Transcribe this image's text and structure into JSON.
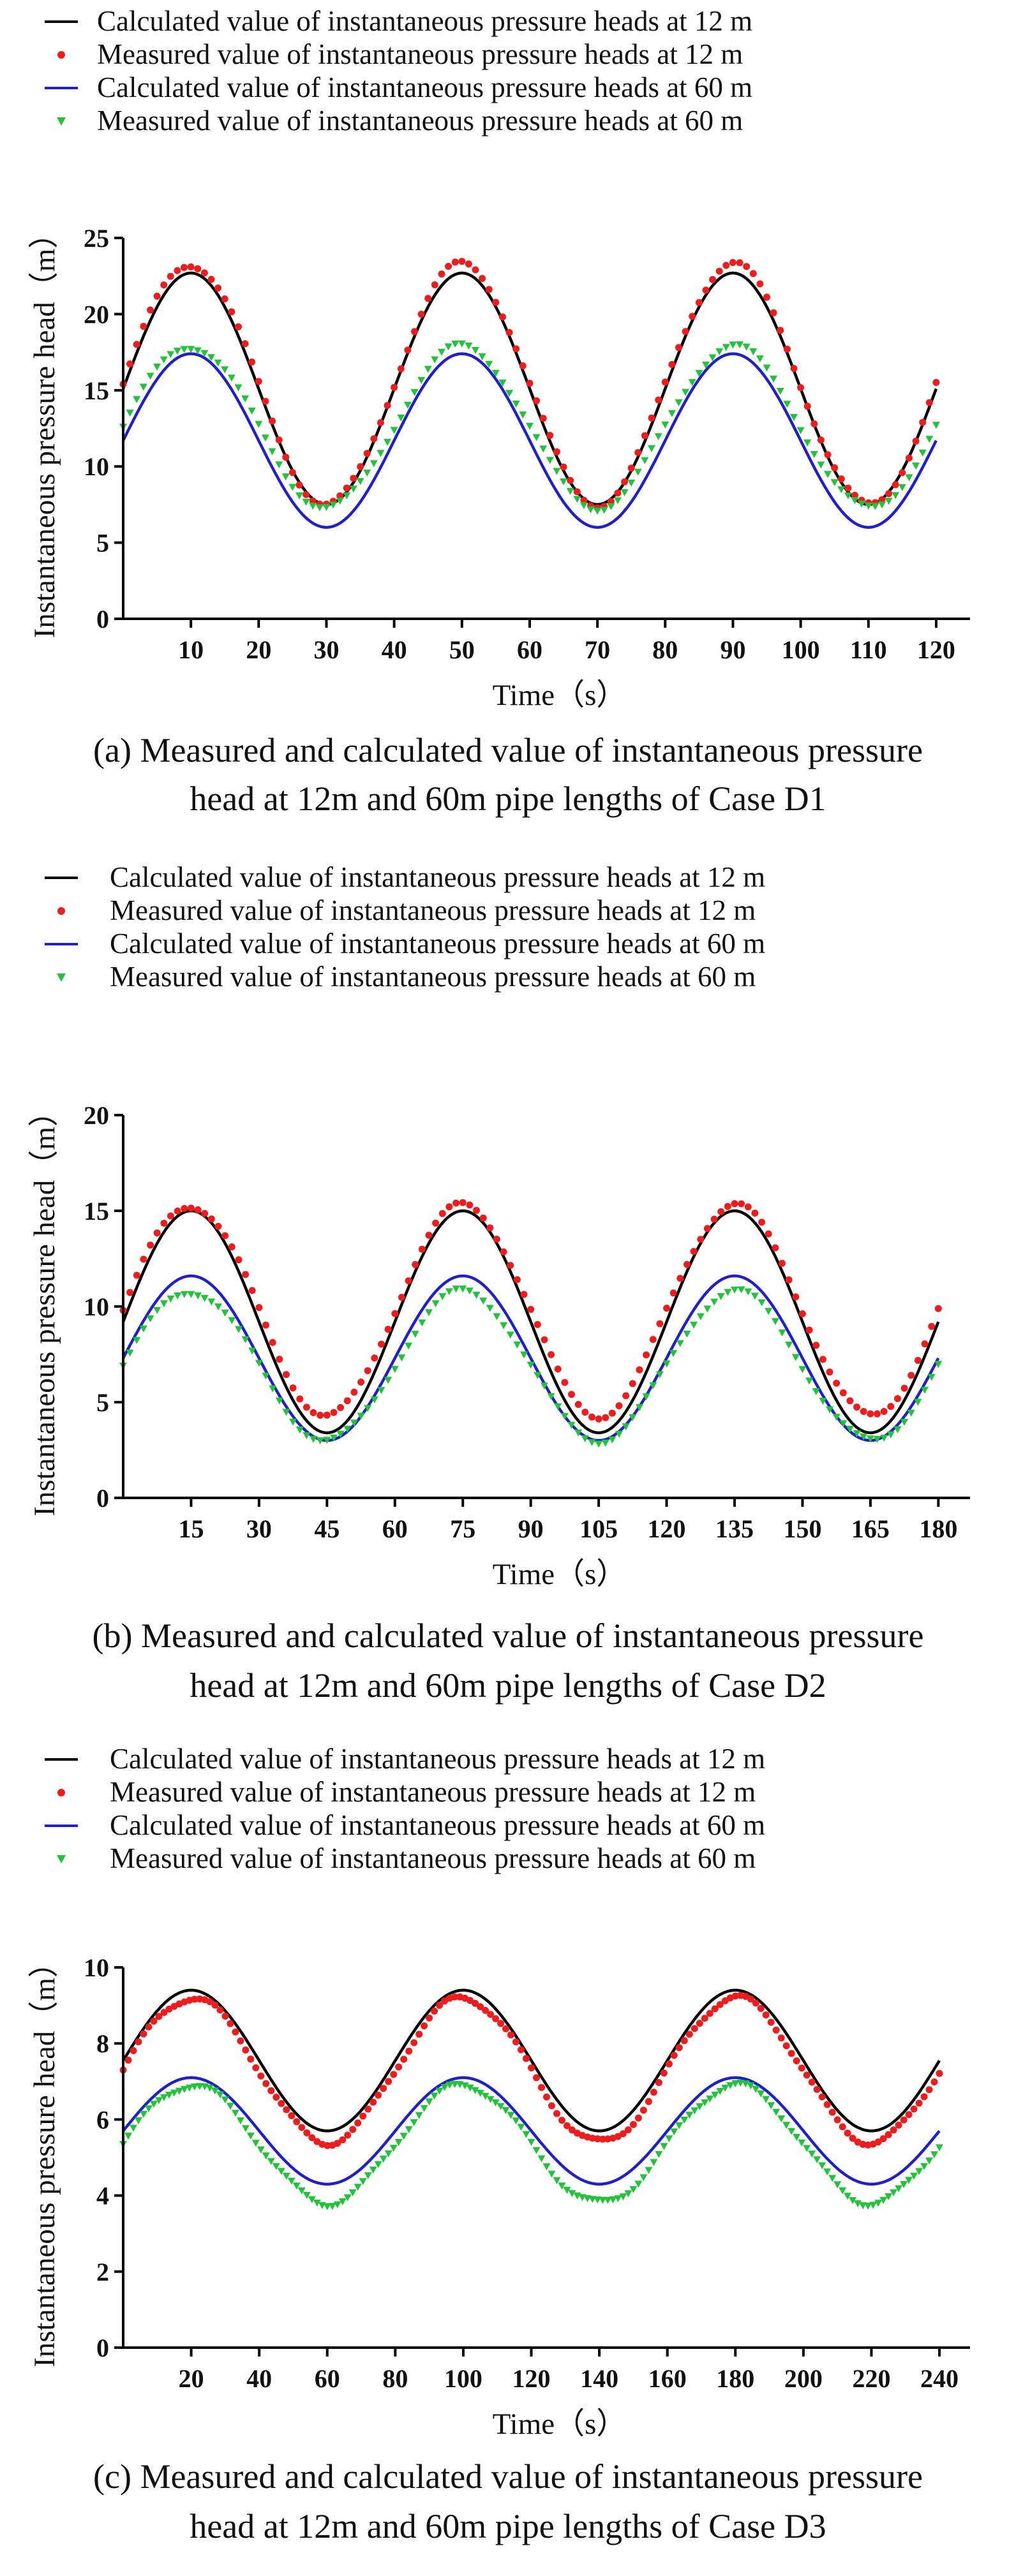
{
  "figure": {
    "description_panels": 3
  },
  "colors": {
    "calc_12": "#000000",
    "meas_12": "#ee1c1c",
    "calc_60": "#1f1fcc",
    "meas_60": "#22c33a",
    "axis": "#000000"
  },
  "chart_data": [
    {
      "type": "line",
      "title": "",
      "caption": {
        "line1": "(a) Measured and calculated value of instantaneous pressure",
        "line2": "head at 12m and 60m pipe lengths of Case D1"
      },
      "xlabel": "Time（s）",
      "ylabel": "Instantaneous pressure head（m）",
      "xlim": [
        0,
        125
      ],
      "ylim": [
        0,
        25
      ],
      "xticks": [
        10,
        20,
        30,
        40,
        50,
        60,
        70,
        80,
        90,
        100,
        110,
        120
      ],
      "yticks": [
        0,
        5,
        10,
        15,
        20,
        25
      ],
      "period_s": 40,
      "legend": [
        "Calculated value of instantaneous pressure heads at 12 m",
        "Measured value of instantaneous pressure heads at 12 m",
        "Calculated value of instantaneous pressure heads at 60 m",
        "Measured value of instantaneous pressure heads at 60 m"
      ],
      "series": [
        {
          "name": "Calculated value of instantaneous pressure heads at 12 m",
          "kind": "line",
          "color_key": "calc_12",
          "mean": 15.1,
          "amplitude": 7.6,
          "x_range": [
            0,
            120
          ],
          "step": 0.5
        },
        {
          "name": "Measured value of instantaneous pressure heads at 12 m",
          "kind": "circle",
          "color_key": "meas_12",
          "mean": 15.4,
          "amplitude": 7.9,
          "x_range": [
            0,
            120
          ],
          "step": 1.0
        },
        {
          "name": "Calculated value of instantaneous pressure heads at 60 m",
          "kind": "line",
          "color_key": "calc_60",
          "mean": 11.7,
          "amplitude": 5.7,
          "x_range": [
            0,
            120
          ],
          "step": 0.5
        },
        {
          "name": "Measured value of instantaneous pressure heads at 60 m",
          "kind": "triangle",
          "color_key": "meas_60",
          "mean": 12.6,
          "amplitude": 5.3,
          "x_range": [
            0,
            120
          ],
          "step": 1.0
        }
      ]
    },
    {
      "type": "line",
      "title": "",
      "caption": {
        "line1": "(b) Measured and calculated value of instantaneous pressure",
        "line2": "head at 12m and 60m pipe lengths of Case D2"
      },
      "xlabel": "Time（s）",
      "ylabel": "Instantaneous pressure head（m）",
      "xlim": [
        0,
        187
      ],
      "ylim": [
        0,
        20
      ],
      "xticks": [
        15,
        30,
        45,
        60,
        75,
        90,
        105,
        120,
        135,
        150,
        165,
        180
      ],
      "yticks": [
        0,
        5,
        10,
        15,
        20
      ],
      "period_s": 60,
      "legend": [
        "Calculated value of instantaneous pressure heads at 12 m",
        "Measured value of instantaneous pressure heads at 12 m",
        "Calculated value of instantaneous pressure heads at 60 m",
        "Measured value of instantaneous pressure heads at 60 m"
      ],
      "series": [
        {
          "name": "Calculated value of instantaneous pressure heads at 12 m",
          "kind": "line",
          "color_key": "calc_12",
          "mean": 9.2,
          "amplitude": 5.8,
          "x_range": [
            0,
            180
          ],
          "step": 0.5
        },
        {
          "name": "Measured value of instantaneous pressure heads at 12 m",
          "kind": "circle",
          "color_key": "meas_12",
          "mean": 9.8,
          "amplitude": 5.5,
          "x_range": [
            0,
            180
          ],
          "step": 1.5
        },
        {
          "name": "Calculated value of instantaneous pressure heads at 60 m",
          "kind": "line",
          "color_key": "calc_60",
          "mean": 7.3,
          "amplitude": 4.3,
          "x_range": [
            0,
            180
          ],
          "step": 0.5
        },
        {
          "name": "Measured value of instantaneous pressure heads at 60 m",
          "kind": "triangle",
          "color_key": "meas_60",
          "mean": 6.9,
          "amplitude": 3.9,
          "x_range": [
            0,
            180
          ],
          "step": 1.5
        }
      ]
    },
    {
      "type": "line",
      "title": "",
      "caption": {
        "line1": "(c) Measured and calculated value of instantaneous pressure",
        "line2": "head at 12m and 60m pipe lengths of Case D3"
      },
      "xlabel": "Time（s）",
      "ylabel": "Instantaneous pressure head（m）",
      "xlim": [
        0,
        249
      ],
      "ylim": [
        0,
        10
      ],
      "xticks": [
        20,
        40,
        60,
        80,
        100,
        120,
        140,
        160,
        180,
        200,
        220,
        240
      ],
      "yticks": [
        0,
        2,
        4,
        6,
        8,
        10
      ],
      "period_s": 80,
      "legend": [
        "Calculated value of instantaneous pressure heads at 12 m",
        "Measured value of instantaneous pressure heads at 12 m",
        "Calculated value of instantaneous pressure heads at 60 m",
        "Measured value of instantaneous pressure heads at 60 m"
      ],
      "series": [
        {
          "name": "Calculated value of instantaneous pressure heads at 12 m",
          "kind": "line",
          "color_key": "calc_12",
          "mean": 7.55,
          "amplitude": 1.85,
          "x_range": [
            0,
            240
          ],
          "step": 0.5
        },
        {
          "name": "Measured value of instantaneous pressure heads at 12 m",
          "kind": "circle",
          "color_key": "meas_12",
          "mean": 7.3,
          "amplitude": 1.9,
          "x_range": [
            0,
            240
          ],
          "step": 1.5
        },
        {
          "name": "Calculated value of instantaneous pressure heads at 60 m",
          "kind": "line",
          "color_key": "calc_60",
          "mean": 5.7,
          "amplitude": 1.4,
          "x_range": [
            0,
            240
          ],
          "step": 0.5
        },
        {
          "name": "Measured value of instantaneous pressure heads at 60 m",
          "kind": "triangle",
          "color_key": "meas_60",
          "mean": 5.35,
          "amplitude": 1.55,
          "x_range": [
            0,
            240
          ],
          "step": 1.5
        }
      ]
    }
  ]
}
